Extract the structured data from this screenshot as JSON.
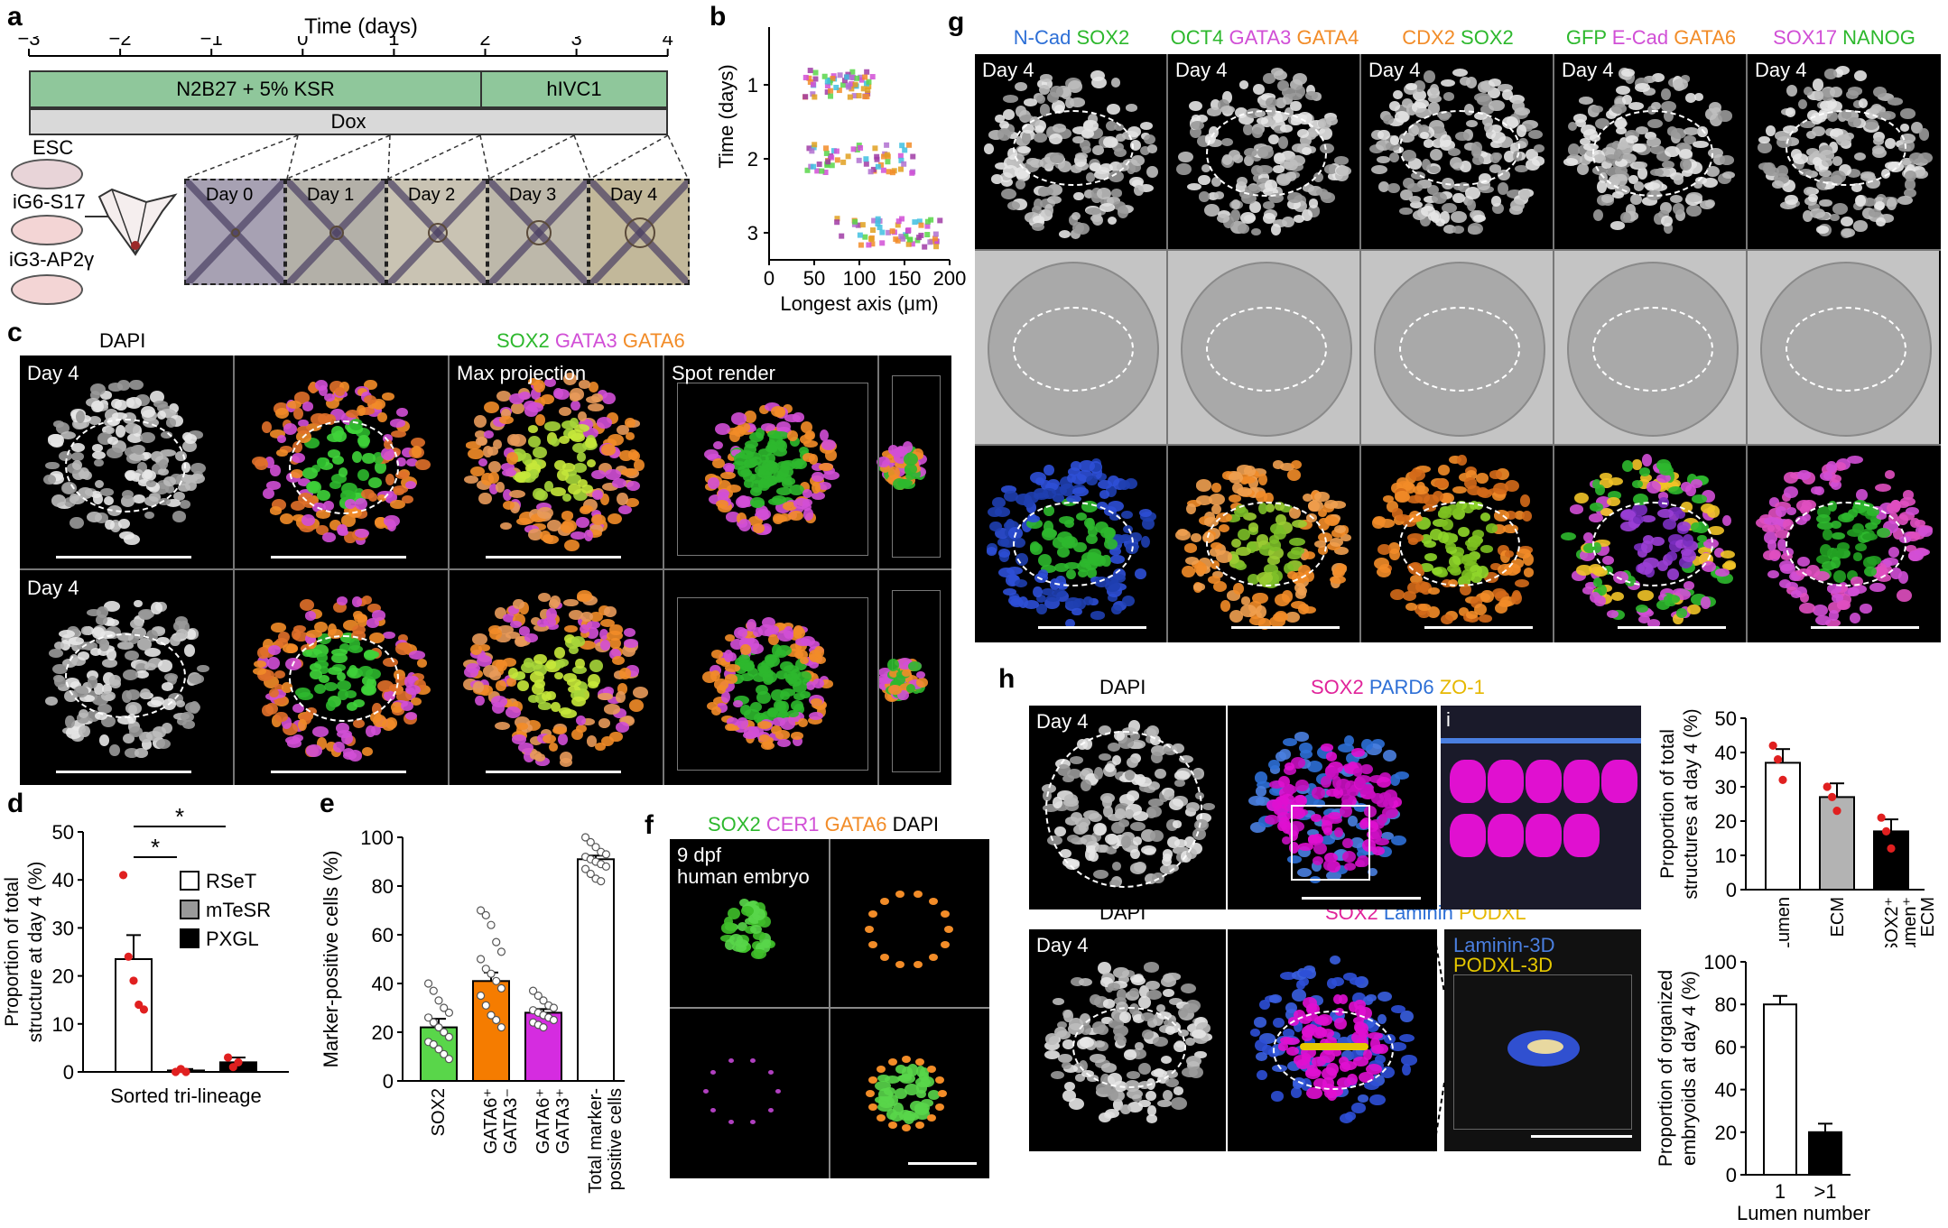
{
  "panels": {
    "a": "a",
    "b": "b",
    "c": "c",
    "d": "d",
    "e": "e",
    "f": "f",
    "g": "g",
    "h": "h"
  },
  "a": {
    "time_label": "Time (days)",
    "ticks": [
      "−3",
      "−2",
      "−1",
      "0",
      "1",
      "2",
      "3",
      "4"
    ],
    "bar_medium": "N2B27 + 5% KSR",
    "bar_hivc": "hIVC1",
    "bar_dox": "Dox",
    "cells": [
      "ESC",
      "iG6-S17",
      "iG3-AP2γ"
    ],
    "days": [
      "Day 0",
      "Day 1",
      "Day 2",
      "Day 3",
      "Day 4"
    ],
    "colors": {
      "medium": "#8fc79b",
      "dox": "#d9d9d9"
    }
  },
  "b": {
    "chart_data": {
      "type": "scatter",
      "xlabel": "Longest axis (μm)",
      "ylabel": "Time (days)",
      "xlim": [
        0,
        200
      ],
      "xticks": [
        "0",
        "50",
        "100",
        "150",
        "200"
      ],
      "categories": [
        "1",
        "2",
        "3"
      ],
      "ranges": [
        {
          "category": "1",
          "min": 40,
          "max": 115
        },
        {
          "category": "2",
          "min": 40,
          "max": 160
        },
        {
          "category": "3",
          "min": 75,
          "max": 190
        }
      ]
    }
  },
  "c": {
    "dapi": "DAPI",
    "markers": [
      "SOX2",
      "GATA3",
      "GATA6"
    ],
    "marker_colors": [
      "#2db82d",
      "#d14fd6",
      "#f28c28"
    ],
    "max_projection": "Max projection",
    "spot_render": "Spot render",
    "day": "Day 4"
  },
  "d": {
    "chart_data": {
      "type": "bar",
      "title": "",
      "ylabel": "Proportion of total structure at day 4 (%)",
      "xlabel": "Sorted tri-lineage",
      "ylim": [
        0,
        50
      ],
      "yticks": [
        "0",
        "10",
        "20",
        "30",
        "40",
        "50"
      ],
      "series": [
        {
          "name": "RSeT",
          "value": 23.5,
          "sem": 5,
          "points": [
            41,
            24,
            19,
            14,
            13
          ]
        },
        {
          "name": "mTeSR",
          "value": 0.3,
          "sem": 0.3,
          "points": [
            0,
            0.6,
            0
          ]
        },
        {
          "name": "PXGL",
          "value": 2,
          "sem": 1,
          "points": [
            3,
            1,
            2
          ]
        }
      ],
      "legend": [
        "RSeT",
        "mTeSR",
        "PXGL"
      ],
      "significance": [
        "*",
        "*"
      ]
    }
  },
  "e": {
    "chart_data": {
      "type": "bar",
      "ylabel": "Marker-positive cells (%)",
      "ylim": [
        0,
        100
      ],
      "yticks": [
        "0",
        "20",
        "40",
        "60",
        "80",
        "100"
      ],
      "categories": [
        "SOX2",
        "GATA6⁺ GATA3⁻",
        "GATA6⁺ GATA3⁺",
        "Total marker-positive cells"
      ],
      "category_lines": [
        [
          "SOX2"
        ],
        [
          "GATA6⁺",
          "GATA3⁻"
        ],
        [
          "GATA6⁺",
          "GATA3⁺"
        ],
        [
          "Total marker-",
          "positive cells"
        ]
      ],
      "values": [
        22,
        41,
        28,
        91
      ],
      "sem": [
        3.5,
        3.5,
        1.5,
        1.5
      ],
      "colors": [
        "#59d64a",
        "#f57c00",
        "#d52ce0",
        "#ffffff"
      ],
      "points": [
        [
          40,
          37,
          33,
          30,
          28,
          26,
          24,
          22,
          20,
          18,
          16,
          15,
          13,
          11,
          9
        ],
        [
          70,
          68,
          64,
          57,
          53,
          50,
          46,
          44,
          41,
          38,
          35,
          31,
          27,
          25,
          22
        ],
        [
          37,
          35,
          33,
          31,
          30,
          29,
          28,
          27,
          26,
          25,
          24,
          23,
          22
        ],
        [
          100,
          98,
          96,
          94,
          93,
          92,
          91,
          90,
          89,
          88,
          87,
          85,
          83,
          82
        ]
      ]
    }
  },
  "f": {
    "markers": [
      "SOX2",
      "CER1",
      "GATA6",
      "DAPI"
    ],
    "marker_colors": [
      "#2db82d",
      "#d14fd6",
      "#f28c28",
      "#000000"
    ],
    "label1": "9 dpf",
    "label2": "human embryo"
  },
  "g": {
    "col_headers": [
      [
        {
          "t": "N-Cad",
          "c": "#2d6fd6"
        },
        {
          "t": "SOX2",
          "c": "#2db82d"
        }
      ],
      [
        {
          "t": "OCT4",
          "c": "#2db82d"
        },
        {
          "t": "GATA3",
          "c": "#d14fd6"
        },
        {
          "t": "GATA4",
          "c": "#f28c28"
        }
      ],
      [
        {
          "t": "CDX2",
          "c": "#f28c28"
        },
        {
          "t": "SOX2",
          "c": "#2db82d"
        }
      ],
      [
        {
          "t": "GFP",
          "c": "#2db82d"
        },
        {
          "t": "E-Cad",
          "c": "#d14fd6"
        },
        {
          "t": "GATA6",
          "c": "#f28c28"
        }
      ],
      [
        {
          "t": "SOX17",
          "c": "#d14fd6"
        },
        {
          "t": "NANOG",
          "c": "#2db82d"
        }
      ]
    ],
    "day": "Day 4"
  },
  "h": {
    "dapi": "DAPI",
    "markers_top": [
      {
        "t": "SOX2",
        "c": "#e0239a"
      },
      {
        "t": "PARD6",
        "c": "#2d6fd6"
      },
      {
        "t": "ZO-1",
        "c": "#e6b800"
      }
    ],
    "markers_bottom": [
      {
        "t": "SOX2",
        "c": "#e0239a"
      },
      {
        "t": "Laminin",
        "c": "#2d6fd6"
      },
      {
        "t": "PODXL",
        "c": "#e6b800"
      }
    ],
    "day": "Day 4",
    "inset_label": "i",
    "laminin3d": "Laminin-3D",
    "podxl3d": "PODXL-3D",
    "chart_top": {
      "type": "bar",
      "ylabel": "Proportion of total structures at day 4 (%)",
      "ylim": [
        0,
        50
      ],
      "yticks": [
        "0",
        "10",
        "20",
        "30",
        "40",
        "50"
      ],
      "categories": [
        "Lumen",
        "ECM",
        "SOX2⁺ lumen⁺ ECM"
      ],
      "category_lines": [
        [
          "Lumen"
        ],
        [
          "ECM"
        ],
        [
          "SOX2⁺",
          "lumen⁺",
          "ECM"
        ]
      ],
      "values": [
        37,
        27,
        17
      ],
      "sem": [
        4,
        4,
        3.5
      ],
      "colors": [
        "#ffffff",
        "#b3b3b3",
        "#000000"
      ],
      "points": [
        [
          42,
          38,
          32
        ],
        [
          30,
          27,
          23
        ],
        [
          21,
          17,
          12
        ]
      ]
    },
    "chart_bottom": {
      "type": "bar",
      "ylabel": "Proportion of organized embryoids at day 4 (%)",
      "xlabel": "Lumen number",
      "ylim": [
        0,
        100
      ],
      "yticks": [
        "0",
        "20",
        "40",
        "60",
        "80",
        "100"
      ],
      "categories": [
        "1",
        ">1"
      ],
      "values": [
        80,
        20
      ],
      "sem": [
        4,
        4
      ],
      "colors": [
        "#ffffff",
        "#000000"
      ]
    }
  }
}
